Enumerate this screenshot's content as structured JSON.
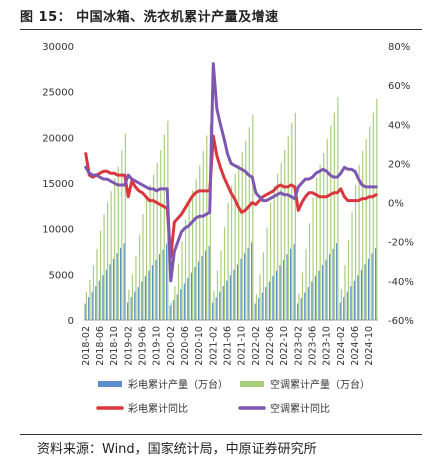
{
  "figure": {
    "title": "图 15：  中国冰箱、洗衣机累计产量及增速",
    "source": "资料来源：Wind，国家统计局，中原证券研究所"
  },
  "chart_data": {
    "type": "bar",
    "x_tick_labels": [
      "2018-02",
      "2018-06",
      "2018-10",
      "2019-02",
      "2019-06",
      "2019-10",
      "2020-02",
      "2020-06",
      "2020-10",
      "2021-02",
      "2021-06",
      "2021-10",
      "2022-02",
      "2022-06",
      "2022-10",
      "2023-02",
      "2023-06",
      "2023-10",
      "2024-02",
      "2024-06",
      "2024-10"
    ],
    "ylim_left": [
      0,
      30000
    ],
    "yticks_left": [
      "0",
      "5000",
      "10000",
      "15000",
      "20000",
      "25000",
      "30000"
    ],
    "ylim_right": [
      -60,
      80
    ],
    "yticks_right": [
      "-60%",
      "-40%",
      "-20%",
      "0%",
      "20%",
      "40%",
      "60%",
      "80%"
    ],
    "colors": {
      "tv_bar": "#5b8fc9",
      "ac_bar": "#a9cf7c",
      "tv_line": "#d9363e",
      "ac_line": "#7e57b2"
    },
    "series": [
      {
        "name": "彩电累计产量（万台）",
        "kind": "bar",
        "axis": "left",
        "values": [
          1800,
          2500,
          3100,
          3700,
          4300,
          4900,
          5500,
          6100,
          6700,
          7300,
          7900,
          8400,
          1900,
          2500,
          3100,
          3600,
          4200,
          4800,
          5400,
          6000,
          6600,
          7200,
          7700,
          8300,
          1600,
          2200,
          2800,
          3400,
          4000,
          4600,
          5200,
          5800,
          6400,
          7000,
          7600,
          8100,
          1900,
          2500,
          3100,
          3700,
          4300,
          4900,
          5500,
          6100,
          6700,
          7300,
          7900,
          8500,
          1800,
          2400,
          3000,
          3600,
          4200,
          4800,
          5400,
          6000,
          6600,
          7200,
          7800,
          8300,
          1800,
          2400,
          3000,
          3600,
          4200,
          4800,
          5400,
          6000,
          6600,
          7200,
          7800,
          8400,
          1900,
          2500,
          3100,
          3700,
          4300,
          4900,
          5500,
          6100,
          6700,
          7300,
          7900
        ]
      },
      {
        "name": "空调累计产量（万台）",
        "kind": "bar",
        "axis": "left",
        "values": [
          3100,
          4400,
          6000,
          7800,
          9800,
          11600,
          12900,
          14100,
          15500,
          16800,
          18600,
          20400,
          3300,
          5000,
          7000,
          9300,
          11600,
          13400,
          14800,
          15900,
          17200,
          18600,
          20300,
          21800,
          1900,
          3700,
          6200,
          8600,
          11000,
          12800,
          14200,
          15400,
          16900,
          18500,
          20200,
          21400,
          3200,
          5400,
          7600,
          10200,
          12800,
          14700,
          16000,
          17000,
          18400,
          19600,
          21100,
          22500,
          2800,
          5000,
          7400,
          10100,
          12800,
          14700,
          16000,
          17200,
          18600,
          20100,
          21600,
          22700,
          2900,
          5200,
          7800,
          10600,
          13400,
          15600,
          17000,
          18300,
          19800,
          21300,
          22700,
          24400,
          3400,
          6000,
          8800,
          11800,
          14800,
          17000,
          18500,
          19800,
          21200,
          22700,
          24200
        ]
      },
      {
        "name": "彩电累计同比",
        "kind": "line",
        "axis": "right",
        "values": [
          25,
          14,
          13,
          14,
          15,
          16,
          16,
          15,
          15,
          14,
          14,
          14,
          3,
          11,
          8,
          6,
          5,
          3,
          1,
          1,
          0,
          -1,
          -2,
          -3,
          -28,
          -10,
          -8,
          -6,
          -3,
          0,
          3,
          5,
          6,
          6,
          6,
          6,
          34,
          24,
          18,
          13,
          9,
          5,
          2,
          -2,
          -5,
          -4,
          -2,
          0,
          -1,
          1,
          3,
          4,
          5,
          6,
          8,
          9,
          8,
          8,
          9,
          8,
          -4,
          0,
          3,
          5,
          5,
          4,
          3,
          3,
          3,
          4,
          5,
          5,
          7,
          3,
          1,
          1,
          1,
          1,
          2,
          2,
          3,
          3,
          4
        ]
      },
      {
        "name": "空调累计同比",
        "kind": "line",
        "axis": "right",
        "values": [
          18,
          15,
          14,
          14,
          13,
          12,
          12,
          11,
          10,
          9,
          9,
          9,
          14,
          12,
          11,
          10,
          9,
          8,
          7,
          7,
          6,
          7,
          7,
          7,
          -40,
          -25,
          -20,
          -15,
          -13,
          -12,
          -10,
          -8,
          -7,
          -7,
          -6,
          -5,
          71,
          48,
          40,
          33,
          25,
          20,
          19,
          18,
          17,
          16,
          14,
          13,
          5,
          3,
          1,
          1,
          2,
          3,
          4,
          5,
          4,
          4,
          3,
          2,
          8,
          10,
          12,
          12,
          13,
          15,
          16,
          17,
          16,
          14,
          13,
          13,
          15,
          18,
          17,
          17,
          16,
          12,
          9,
          8,
          8,
          8,
          8
        ]
      }
    ]
  }
}
